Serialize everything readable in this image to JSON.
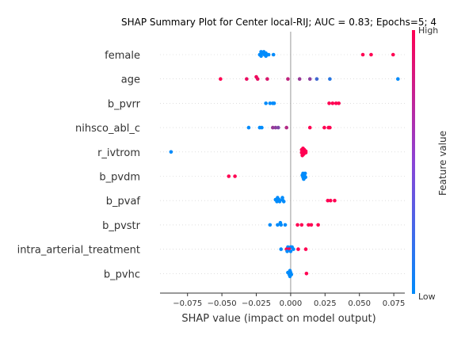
{
  "chart_data": {
    "type": "scatter",
    "title": "SHAP Summary Plot for Center local-RIJ; AUC = 0.83; Epochs=5; 4",
    "xlabel": "SHAP value (impact on model output)",
    "xlim": [
      -0.095,
      0.083
    ],
    "xticks": [
      -0.075,
      -0.05,
      -0.025,
      0.0,
      0.025,
      0.05,
      0.075
    ],
    "xtick_labels": [
      "−0.075",
      "−0.050",
      "−0.025",
      "0.000",
      "0.025",
      "0.050",
      "0.075"
    ],
    "zero_line": 0,
    "colorbar": {
      "label": "Feature value",
      "high_label": "High",
      "low_label": "Low",
      "low_color": "#008bfb",
      "high_color": "#ff0052"
    },
    "features": [
      {
        "name": "female",
        "points": [
          {
            "x": -0.0215,
            "y": 0.24,
            "v": 0
          },
          {
            "x": -0.0195,
            "y": 0.24,
            "v": 0
          },
          {
            "x": -0.0205,
            "y": 0.12,
            "v": 0
          },
          {
            "x": -0.018,
            "y": 0.12,
            "v": 0
          },
          {
            "x": -0.0225,
            "y": 0.0,
            "v": 0
          },
          {
            "x": -0.019,
            "y": 0.0,
            "v": 0
          },
          {
            "x": -0.016,
            "y": 0.0,
            "v": 0
          },
          {
            "x": -0.0215,
            "y": -0.12,
            "v": 0
          },
          {
            "x": -0.018,
            "y": -0.12,
            "v": 0
          },
          {
            "x": -0.0125,
            "y": 0.0,
            "v": 0
          },
          {
            "x": 0.0525,
            "y": 0.0,
            "v": 1
          },
          {
            "x": 0.0585,
            "y": 0.0,
            "v": 1
          },
          {
            "x": 0.0745,
            "y": 0.0,
            "v": 1
          }
        ]
      },
      {
        "name": "age",
        "points": [
          {
            "x": -0.025,
            "y": 0.18,
            "v": 0.95
          },
          {
            "x": -0.051,
            "y": 0.0,
            "v": 1
          },
          {
            "x": -0.032,
            "y": 0.0,
            "v": 0.92
          },
          {
            "x": -0.024,
            "y": 0.0,
            "v": 0.9
          },
          {
            "x": -0.017,
            "y": 0.0,
            "v": 0.85
          },
          {
            "x": -0.002,
            "y": 0.0,
            "v": 0.75
          },
          {
            "x": 0.0065,
            "y": 0.0,
            "v": 0.6
          },
          {
            "x": 0.014,
            "y": 0.0,
            "v": 0.55
          },
          {
            "x": 0.019,
            "y": 0.0,
            "v": 0.25
          },
          {
            "x": 0.0285,
            "y": 0.0,
            "v": 0.15
          },
          {
            "x": 0.078,
            "y": 0.0,
            "v": 0
          }
        ]
      },
      {
        "name": "b_pvrr",
        "points": [
          {
            "x": -0.018,
            "y": 0.0,
            "v": 0
          },
          {
            "x": -0.015,
            "y": 0.0,
            "v": 0
          },
          {
            "x": -0.013,
            "y": 0.0,
            "v": 0
          },
          {
            "x": -0.012,
            "y": 0.0,
            "v": 0
          },
          {
            "x": 0.028,
            "y": 0.0,
            "v": 1
          },
          {
            "x": 0.0305,
            "y": 0.0,
            "v": 1
          },
          {
            "x": 0.033,
            "y": 0.0,
            "v": 1
          },
          {
            "x": 0.035,
            "y": 0.0,
            "v": 1
          }
        ]
      },
      {
        "name": "nihsco_abl_c",
        "points": [
          {
            "x": -0.0305,
            "y": 0.0,
            "v": 0
          },
          {
            "x": -0.0225,
            "y": 0.0,
            "v": 0
          },
          {
            "x": -0.021,
            "y": 0.0,
            "v": 0
          },
          {
            "x": -0.013,
            "y": 0.0,
            "v": 0.6
          },
          {
            "x": -0.011,
            "y": 0.0,
            "v": 0.55
          },
          {
            "x": -0.009,
            "y": 0.0,
            "v": 0.5
          },
          {
            "x": -0.003,
            "y": 0.0,
            "v": 0.7
          },
          {
            "x": 0.014,
            "y": 0.0,
            "v": 1
          },
          {
            "x": 0.0245,
            "y": 0.0,
            "v": 1
          },
          {
            "x": 0.0275,
            "y": 0.0,
            "v": 1
          },
          {
            "x": 0.0285,
            "y": 0.0,
            "v": 1
          }
        ]
      },
      {
        "name": "r_ivtrom",
        "points": [
          {
            "x": -0.087,
            "y": 0.0,
            "v": 0
          },
          {
            "x": 0.009,
            "y": 0.3,
            "v": 1
          },
          {
            "x": 0.01,
            "y": 0.18,
            "v": 1
          },
          {
            "x": 0.008,
            "y": 0.18,
            "v": 1
          },
          {
            "x": 0.011,
            "y": 0.06,
            "v": 1
          },
          {
            "x": 0.009,
            "y": 0.06,
            "v": 1
          },
          {
            "x": 0.0095,
            "y": -0.06,
            "v": 1
          },
          {
            "x": 0.008,
            "y": -0.06,
            "v": 1
          },
          {
            "x": 0.011,
            "y": -0.06,
            "v": 1
          },
          {
            "x": 0.0095,
            "y": -0.18,
            "v": 1
          },
          {
            "x": 0.0085,
            "y": -0.3,
            "v": 1
          }
        ]
      },
      {
        "name": "b_pvdm",
        "points": [
          {
            "x": -0.045,
            "y": 0.0,
            "v": 1
          },
          {
            "x": -0.0405,
            "y": 0.0,
            "v": 1
          },
          {
            "x": 0.009,
            "y": 0.24,
            "v": 0
          },
          {
            "x": 0.0105,
            "y": 0.24,
            "v": 0
          },
          {
            "x": 0.0085,
            "y": 0.08,
            "v": 0
          },
          {
            "x": 0.01,
            "y": 0.08,
            "v": 0
          },
          {
            "x": 0.009,
            "y": -0.08,
            "v": 0
          },
          {
            "x": 0.0108,
            "y": -0.08,
            "v": 0
          },
          {
            "x": 0.0095,
            "y": -0.24,
            "v": 0
          }
        ]
      },
      {
        "name": "b_pvaf",
        "points": [
          {
            "x": -0.0095,
            "y": 0.24,
            "v": 0
          },
          {
            "x": -0.006,
            "y": 0.24,
            "v": 0
          },
          {
            "x": -0.011,
            "y": 0.08,
            "v": 0
          },
          {
            "x": -0.0085,
            "y": 0.08,
            "v": 0
          },
          {
            "x": -0.006,
            "y": 0.08,
            "v": 0
          },
          {
            "x": -0.01,
            "y": -0.08,
            "v": 0
          },
          {
            "x": -0.008,
            "y": -0.08,
            "v": 0
          },
          {
            "x": -0.005,
            "y": -0.08,
            "v": 0
          },
          {
            "x": 0.027,
            "y": 0.0,
            "v": 1
          },
          {
            "x": 0.029,
            "y": 0.0,
            "v": 1
          },
          {
            "x": 0.032,
            "y": 0.0,
            "v": 1
          }
        ]
      },
      {
        "name": "b_pvstr",
        "points": [
          {
            "x": -0.0075,
            "y": 0.18,
            "v": 0
          },
          {
            "x": -0.015,
            "y": 0.0,
            "v": 0
          },
          {
            "x": -0.0095,
            "y": 0.0,
            "v": 0
          },
          {
            "x": -0.007,
            "y": 0.0,
            "v": 0
          },
          {
            "x": -0.004,
            "y": 0.0,
            "v": 0
          },
          {
            "x": 0.005,
            "y": 0.0,
            "v": 1
          },
          {
            "x": 0.008,
            "y": 0.0,
            "v": 1
          },
          {
            "x": 0.013,
            "y": 0.0,
            "v": 1
          },
          {
            "x": 0.015,
            "y": 0.0,
            "v": 1
          },
          {
            "x": 0.02,
            "y": 0.0,
            "v": 1
          }
        ]
      },
      {
        "name": "intra_arterial_treatment",
        "points": [
          {
            "x": -0.002,
            "y": 0.18,
            "v": 0
          },
          {
            "x": 0.0,
            "y": 0.18,
            "v": 0
          },
          {
            "x": 0.001,
            "y": 0.18,
            "v": 0
          },
          {
            "x": -0.007,
            "y": 0.0,
            "v": 0
          },
          {
            "x": -0.003,
            "y": 0.0,
            "v": 1
          },
          {
            "x": -0.001,
            "y": 0.0,
            "v": 1
          },
          {
            "x": 0.002,
            "y": 0.0,
            "v": 0
          },
          {
            "x": 0.0055,
            "y": 0.0,
            "v": 1
          },
          {
            "x": 0.011,
            "y": 0.0,
            "v": 1
          },
          {
            "x": -0.0025,
            "y": -0.18,
            "v": 0
          },
          {
            "x": 0.0,
            "y": -0.18,
            "v": 0
          }
        ]
      },
      {
        "name": "b_pvhc",
        "points": [
          {
            "x": -0.0005,
            "y": 0.24,
            "v": 0
          },
          {
            "x": -0.002,
            "y": 0.08,
            "v": 0
          },
          {
            "x": 0.0,
            "y": 0.08,
            "v": 0
          },
          {
            "x": -0.001,
            "y": -0.08,
            "v": 0
          },
          {
            "x": 0.0005,
            "y": -0.08,
            "v": 0
          },
          {
            "x": -0.0005,
            "y": -0.24,
            "v": 0
          },
          {
            "x": 0.0115,
            "y": 0.0,
            "v": 1
          }
        ]
      }
    ]
  }
}
